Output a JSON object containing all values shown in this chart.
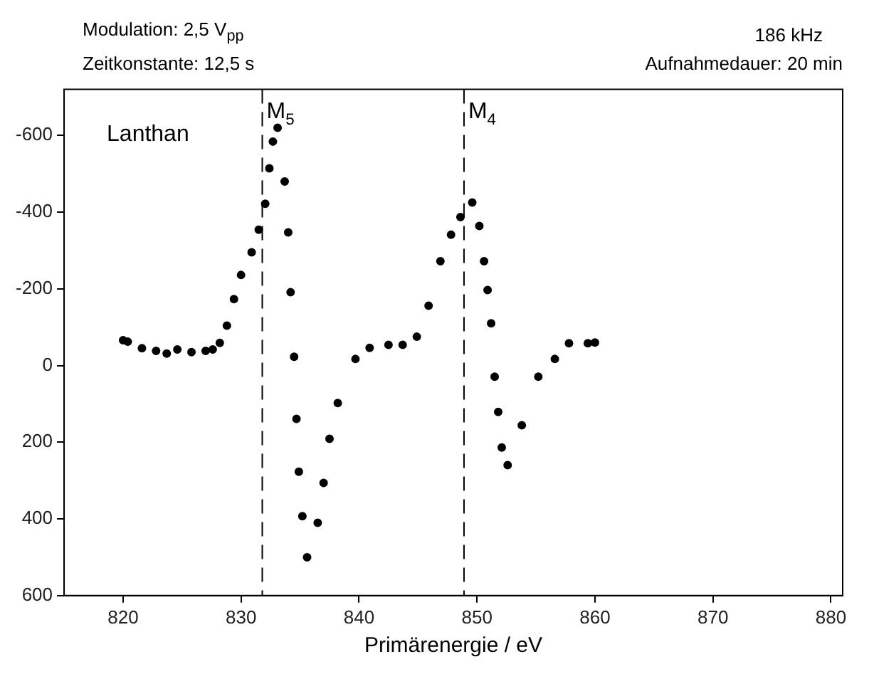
{
  "chart_data": {
    "type": "scatter",
    "xlabel": "Primärenergie / eV",
    "marker": "circle",
    "annotations": [
      "Modulation: 2,5 V$_{pp}$",
      "186 kHz",
      "Zeitkonstante: 12,5 s",
      "Aufnahmedauer: 20 min",
      "Lanthan"
    ],
    "xlim": [
      815,
      881
    ],
    "xticks": [
      820,
      830,
      840,
      850,
      860,
      870,
      880
    ],
    "ylim": [
      600,
      -720
    ],
    "yticks": [
      -600,
      -400,
      -200,
      0,
      200,
      400,
      600
    ],
    "ref_lines": [
      {
        "axis": "x",
        "value": 831.8,
        "label": "M$_{5}$",
        "line_style": "dashed"
      },
      {
        "axis": "x",
        "value": 848.9,
        "label": "M$_{4}$",
        "line_style": "dashed"
      }
    ],
    "series": [
      {
        "color": "#000000",
        "x": [
          820,
          820.4,
          821.6,
          822.8,
          823.7,
          824.6,
          825.8,
          827,
          827.6,
          828.2,
          828.8,
          829.4,
          830,
          830.9,
          831.5,
          832.05,
          832.4,
          832.7,
          833.1,
          833.7,
          834,
          834.2,
          834.5,
          834.7,
          834.9,
          835.2,
          835.6,
          836.5,
          837,
          837.5,
          838.2,
          839.7,
          840.9,
          842.5,
          843.7,
          844.9,
          845.9,
          846.9,
          847.8,
          848.6,
          849.6,
          850.2,
          850.6,
          850.9,
          851.2,
          851.5,
          851.8,
          852.1,
          852.6,
          853.8,
          855.2,
          856.6,
          857.8,
          859.4,
          860
        ],
        "values": [
          -66,
          -62,
          -45,
          -38,
          -31,
          -42,
          -35,
          -38,
          -42,
          -59,
          -104,
          -173,
          -236,
          -295,
          -354,
          -422,
          -514,
          -584,
          -620,
          -480,
          -347,
          -191,
          -23,
          139,
          277,
          393,
          500,
          410,
          306,
          191,
          98,
          -17,
          -46,
          -54,
          -54,
          -75,
          -156,
          -272,
          -341,
          -387,
          -425,
          -364,
          -272,
          -197,
          -110,
          29,
          121,
          214,
          260,
          156,
          29,
          -17,
          -58,
          -58,
          -60
        ]
      }
    ]
  }
}
